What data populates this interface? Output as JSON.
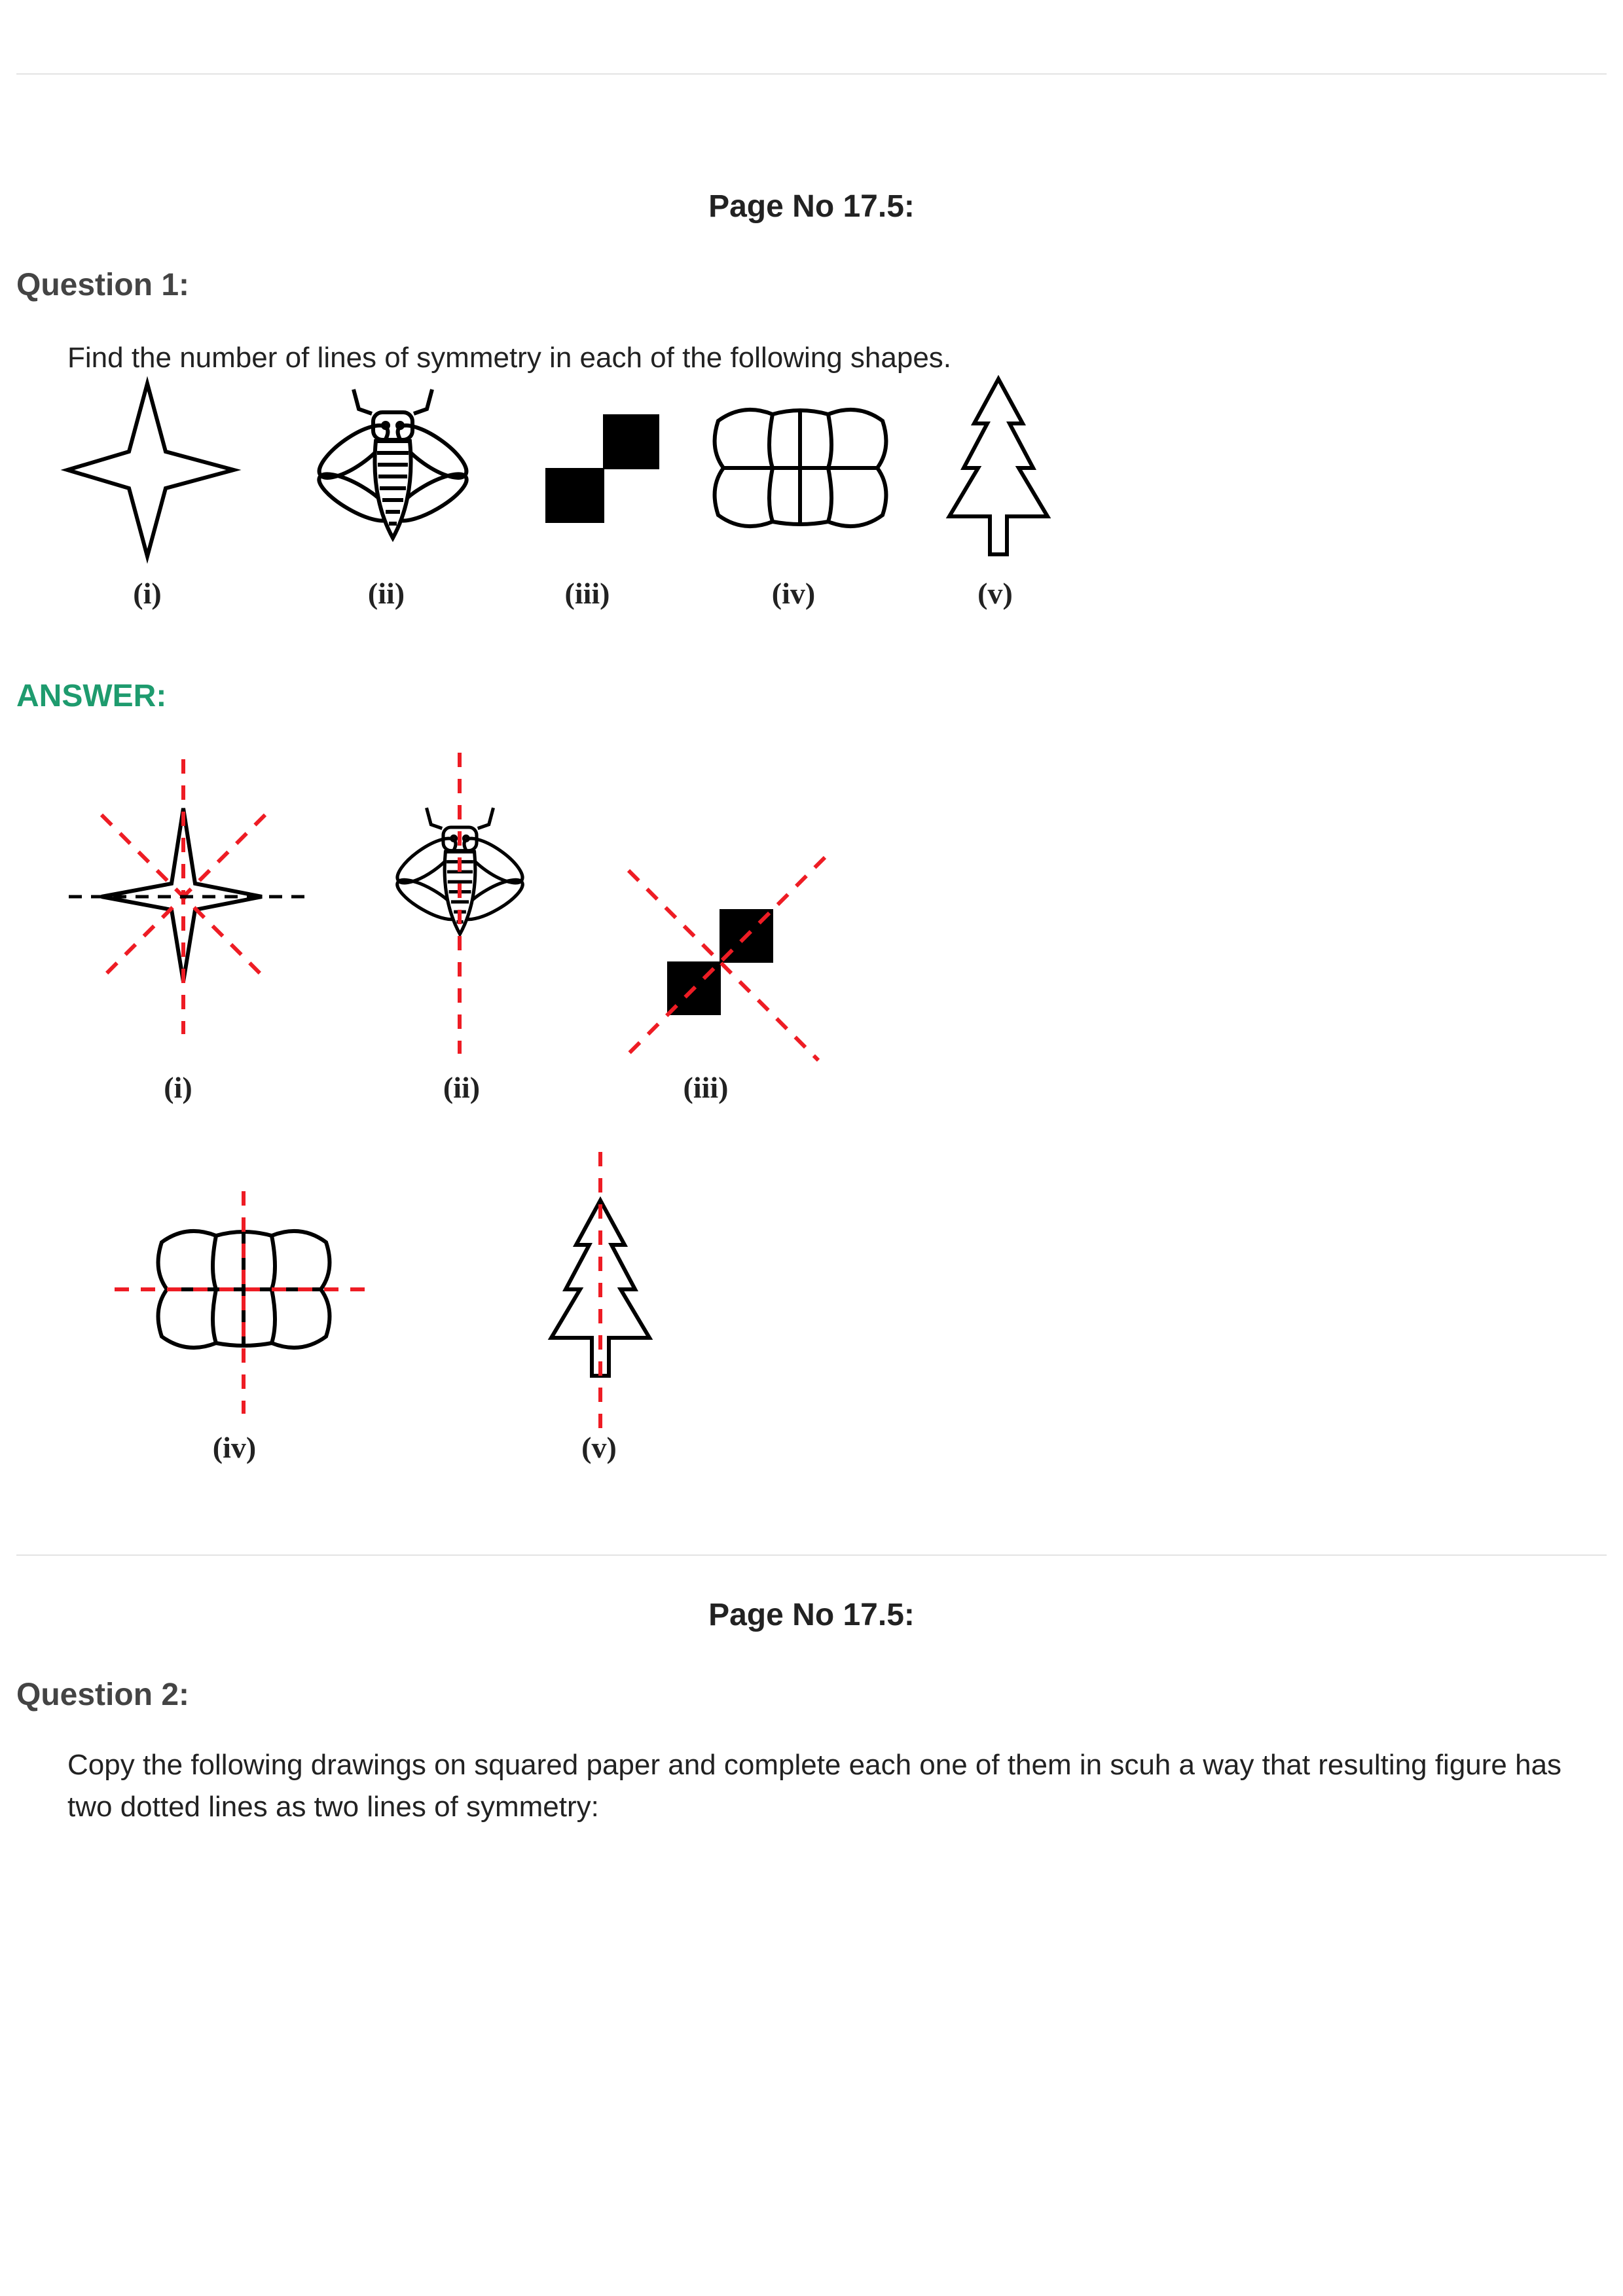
{
  "q1": {
    "page_no": "Page No 17.5:",
    "question": "Question 1:",
    "text": "Find the number of lines of symmetry in each of the following shapes.",
    "labels": [
      "(i)",
      "(ii)",
      "(iii)",
      "(iv)",
      "(v)"
    ],
    "answer_heading": "ANSWER:",
    "answer_labels": [
      "(i)",
      "(ii)",
      "(iii)",
      "(iv)",
      "(v)"
    ]
  },
  "q2": {
    "page_no": "Page No 17.5:",
    "question": "Question 2:",
    "text": "Copy the following drawings on squared paper and complete each one of them in scuh a way that resulting figure has two dotted lines as two lines of symmetry:"
  },
  "colors": {
    "answer_heading": "#1e9b6e",
    "symmetry_line": "#ee1c24",
    "rule": "#e3e3e3"
  }
}
